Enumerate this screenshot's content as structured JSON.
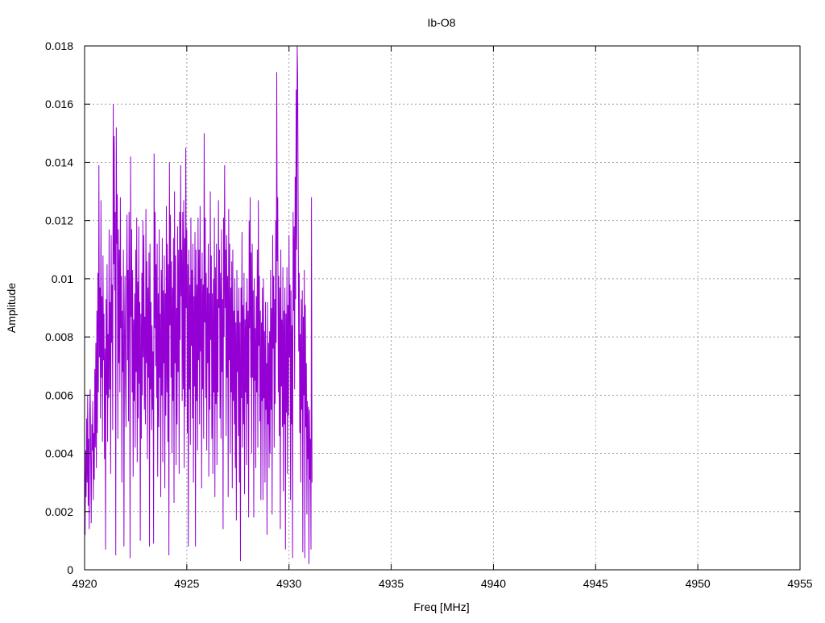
{
  "chart_data": {
    "type": "line",
    "title": "Ib-O8",
    "xlabel": "Freq [MHz]",
    "ylabel": "Amplitude",
    "xlim": [
      4920,
      4955
    ],
    "ylim": [
      0,
      0.018
    ],
    "x_ticks": [
      4920,
      4925,
      4930,
      4935,
      4940,
      4945,
      4950,
      4955
    ],
    "x_tick_labels": [
      "4920",
      "4925",
      "4930",
      "4935",
      "4940",
      "4945",
      "4950",
      "4955"
    ],
    "y_ticks": [
      0,
      0.002,
      0.004,
      0.006,
      0.008,
      0.01,
      0.012,
      0.014,
      0.016,
      0.018
    ],
    "y_tick_labels": [
      "0",
      "0.002",
      "0.004",
      "0.006",
      "0.008",
      "0.01",
      "0.012",
      "0.014",
      "0.016",
      "0.018"
    ],
    "grid": true,
    "legend": "none",
    "series": [
      {
        "color": "#9400d3",
        "x_start": 4920,
        "x_step": 0.025,
        "values": [
          0.0035,
          0.0012,
          0.0041,
          0.0025,
          0.0052,
          0.003,
          0.006,
          0.0022,
          0.0045,
          0.0014,
          0.0054,
          0.0062,
          0.0038,
          0.0016,
          0.005,
          0.0041,
          0.0058,
          0.0024,
          0.0047,
          0.0031,
          0.0069,
          0.0042,
          0.0078,
          0.0035,
          0.0089,
          0.0047,
          0.0102,
          0.0061,
          0.0139,
          0.0073,
          0.0097,
          0.0052,
          0.0127,
          0.0066,
          0.0094,
          0.0044,
          0.0108,
          0.0072,
          0.0088,
          0.0038,
          0.0076,
          0.0007,
          0.0093,
          0.006,
          0.0105,
          0.0044,
          0.0081,
          0.0059,
          0.0117,
          0.0062,
          0.0092,
          0.0033,
          0.0115,
          0.0078,
          0.0098,
          0.0048,
          0.016,
          0.0105,
          0.0149,
          0.0096,
          0.0123,
          0.0005,
          0.0152,
          0.0112,
          0.0129,
          0.0045,
          0.0117,
          0.0071,
          0.011,
          0.0061,
          0.0128,
          0.0083,
          0.0101,
          0.003,
          0.0089,
          0.0068,
          0.011,
          0.0008,
          0.0079,
          0.0101,
          0.0065,
          0.0049,
          0.0096,
          0.0122,
          0.0072,
          0.0103,
          0.0051,
          0.0123,
          0.0098,
          0.0004,
          0.0142,
          0.0087,
          0.0117,
          0.0061,
          0.0103,
          0.0032,
          0.0086,
          0.0058,
          0.0095,
          0.0042,
          0.011,
          0.0068,
          0.0121,
          0.0037,
          0.0099,
          0.0052,
          0.0118,
          0.0064,
          0.0092,
          0.001,
          0.0088,
          0.0045,
          0.0102,
          0.006,
          0.012,
          0.0073,
          0.0115,
          0.0055,
          0.0087,
          0.005,
          0.0124,
          0.0071,
          0.0106,
          0.0038,
          0.0097,
          0.0066,
          0.0109,
          0.0008,
          0.0112,
          0.0062,
          0.0092,
          0.0048,
          0.0084,
          0.0055,
          0.0075,
          0.0009,
          0.0143,
          0.0083,
          0.0123,
          0.007,
          0.0105,
          0.0059,
          0.0112,
          0.0032,
          0.0095,
          0.0049,
          0.0117,
          0.0066,
          0.0088,
          0.0025,
          0.0103,
          0.006,
          0.0114,
          0.0037,
          0.0096,
          0.0071,
          0.0108,
          0.0028,
          0.0095,
          0.0053,
          0.0125,
          0.0061,
          0.0112,
          0.0044,
          0.0105,
          0.0005,
          0.014,
          0.0084,
          0.0122,
          0.0066,
          0.0106,
          0.004,
          0.0097,
          0.0058,
          0.0114,
          0.0023,
          0.013,
          0.0071,
          0.0108,
          0.0036,
          0.009,
          0.005,
          0.0118,
          0.0068,
          0.011,
          0.0033,
          0.0123,
          0.0079,
          0.0139,
          0.0094,
          0.011,
          0.0058,
          0.0123,
          0.0062,
          0.0127,
          0.0035,
          0.0114,
          0.0056,
          0.0145,
          0.009,
          0.0117,
          0.0047,
          0.0105,
          0.0008,
          0.011,
          0.0062,
          0.0098,
          0.0043,
          0.0121,
          0.0077,
          0.0103,
          0.0052,
          0.0112,
          0.003,
          0.0094,
          0.0063,
          0.0116,
          0.0008,
          0.011,
          0.0058,
          0.0098,
          0.0041,
          0.0121,
          0.0072,
          0.011,
          0.005,
          0.0125,
          0.0075,
          0.01,
          0.0028,
          0.0109,
          0.0062,
          0.0098,
          0.0045,
          0.015,
          0.0085,
          0.0121,
          0.0059,
          0.0102,
          0.0041,
          0.0097,
          0.0071,
          0.0112,
          0.0032,
          0.0095,
          0.0055,
          0.013,
          0.0079,
          0.0108,
          0.0045,
          0.0095,
          0.0033,
          0.01,
          0.0061,
          0.0121,
          0.0025,
          0.0104,
          0.0057,
          0.0112,
          0.0036,
          0.0093,
          0.0061,
          0.0127,
          0.009,
          0.011,
          0.0052,
          0.0102,
          0.0045,
          0.0117,
          0.0068,
          0.0093,
          0.0014,
          0.0121,
          0.008,
          0.0139,
          0.009,
          0.011,
          0.0046,
          0.0115,
          0.0066,
          0.0101,
          0.0025,
          0.0124,
          0.0072,
          0.0112,
          0.004,
          0.0097,
          0.0061,
          0.0106,
          0.0028,
          0.011,
          0.0058,
          0.0089,
          0.005,
          0.01,
          0.0035,
          0.0085,
          0.0017,
          0.0103,
          0.0068,
          0.0089,
          0.0046,
          0.0097,
          0.003,
          0.0085,
          0.0003,
          0.0097,
          0.0059,
          0.0116,
          0.0042,
          0.0091,
          0.005,
          0.0102,
          0.0026,
          0.0086,
          0.0061,
          0.0092,
          0.0036,
          0.01,
          0.0057,
          0.0089,
          0.0018,
          0.012,
          0.0083,
          0.0128,
          0.0066,
          0.0109,
          0.004,
          0.0112,
          0.0066,
          0.0096,
          0.0018,
          0.01,
          0.0065,
          0.0083,
          0.0035,
          0.0094,
          0.0061,
          0.011,
          0.0042,
          0.0127,
          0.0077,
          0.0101,
          0.0051,
          0.0089,
          0.0024,
          0.0085,
          0.0058,
          0.0097,
          0.0024,
          0.01,
          0.0059,
          0.0082,
          0.003,
          0.0092,
          0.0055,
          0.0071,
          0.0012,
          0.0092,
          0.005,
          0.0078,
          0.0035,
          0.0082,
          0.004,
          0.0103,
          0.0055,
          0.009,
          0.0019,
          0.0115,
          0.0076,
          0.0101,
          0.0042,
          0.0093,
          0.0057,
          0.012,
          0.0078,
          0.0171,
          0.0106,
          0.0128,
          0.0061,
          0.0101,
          0.0046,
          0.0097,
          0.0014,
          0.011,
          0.0063,
          0.0086,
          0.0049,
          0.0104,
          0.0027,
          0.0089,
          0.005,
          0.0097,
          0.0007,
          0.0088,
          0.0054,
          0.0104,
          0.0033,
          0.0091,
          0.0053,
          0.0115,
          0.0073,
          0.0098,
          0.0024,
          0.0096,
          0.005,
          0.0084,
          0.0004,
          0.0123,
          0.0089,
          0.0118,
          0.0062,
          0.0135,
          0.0093,
          0.0165,
          0.011,
          0.018,
          0.017,
          0.012,
          0.0075,
          0.0102,
          0.0047,
          0.0081,
          0.003,
          0.0093,
          0.0055,
          0.0096,
          0.0006,
          0.0087,
          0.006,
          0.0103,
          0.0004,
          0.0091,
          0.0049,
          0.0071,
          0.0019,
          0.0058,
          0.0038,
          0.0056,
          0.0002,
          0.0055,
          0.0031,
          0.0045,
          0.0007,
          0.0128,
          0.003
        ]
      }
    ]
  }
}
